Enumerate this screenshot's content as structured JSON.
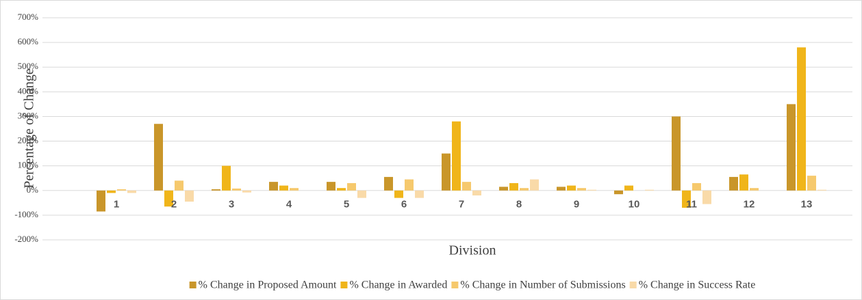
{
  "chart_data": {
    "type": "bar",
    "x_label": "Division",
    "y_label": "Percentage  of Change",
    "categories": [
      "1",
      "2",
      "3",
      "4",
      "5",
      "6",
      "7",
      "8",
      "9",
      "10",
      "11",
      "12",
      "13"
    ],
    "series": [
      {
        "name": "% Change in Proposed Amount",
        "color": "#c9962a",
        "values": [
          -85,
          270,
          5,
          35,
          35,
          55,
          150,
          15,
          15,
          -15,
          300,
          55,
          350
        ]
      },
      {
        "name": "% Change in Awarded",
        "color": "#f0b51a",
        "values": [
          -10,
          -65,
          100,
          20,
          10,
          -30,
          280,
          30,
          20,
          20,
          -70,
          65,
          580
        ]
      },
      {
        "name": "% Change in Number of Submissions",
        "color": "#f6c96d",
        "values": [
          5,
          40,
          8,
          10,
          30,
          45,
          35,
          10,
          10,
          0,
          30,
          10,
          60
        ]
      },
      {
        "name": "% Change in Success Rate",
        "color": "#f9daa8",
        "values": [
          -10,
          -45,
          -8,
          0,
          -30,
          -30,
          -20,
          45,
          3,
          3,
          -55,
          0,
          3
        ]
      }
    ],
    "ylim": [
      -200,
      700
    ],
    "yticks": [
      {
        "value": -200,
        "label": "-200%"
      },
      {
        "value": -100,
        "label": "-100%"
      },
      {
        "value": 0,
        "label": "0%"
      },
      {
        "value": 100,
        "label": "100%"
      },
      {
        "value": 200,
        "label": "200%"
      },
      {
        "value": 300,
        "label": "300%"
      },
      {
        "value": 400,
        "label": "400%"
      },
      {
        "value": 500,
        "label": "500%"
      },
      {
        "value": 600,
        "label": "600%"
      },
      {
        "value": 700,
        "label": "700%"
      }
    ],
    "grid": true,
    "legend": "bottom"
  }
}
